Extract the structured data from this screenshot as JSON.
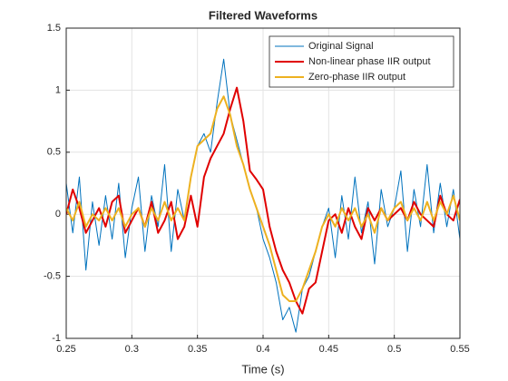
{
  "chart_data": {
    "type": "line",
    "title": "Filtered Waveforms",
    "x_label": "Time (s)",
    "x": [
      0.25,
      0.255,
      0.26,
      0.265,
      0.27,
      0.275,
      0.28,
      0.285,
      0.29,
      0.295,
      0.3,
      0.305,
      0.31,
      0.315,
      0.32,
      0.325,
      0.33,
      0.335,
      0.34,
      0.345,
      0.35,
      0.355,
      0.36,
      0.365,
      0.37,
      0.375,
      0.38,
      0.385,
      0.39,
      0.395,
      0.4,
      0.405,
      0.41,
      0.415,
      0.42,
      0.425,
      0.43,
      0.435,
      0.44,
      0.445,
      0.45,
      0.455,
      0.46,
      0.465,
      0.47,
      0.475,
      0.48,
      0.485,
      0.49,
      0.495,
      0.5,
      0.505,
      0.51,
      0.515,
      0.52,
      0.525,
      0.53,
      0.535,
      0.54,
      0.545,
      0.55
    ],
    "series": [
      {
        "name": "Original Signal",
        "color": "#0072bd",
        "width": 1,
        "values": [
          0.25,
          -0.15,
          0.3,
          -0.45,
          0.1,
          -0.25,
          0.15,
          -0.2,
          0.25,
          -0.35,
          0.05,
          0.3,
          -0.3,
          0.15,
          -0.1,
          0.4,
          -0.3,
          0.2,
          -0.05,
          0.3,
          0.55,
          0.65,
          0.5,
          0.9,
          1.25,
          0.8,
          0.6,
          0.4,
          0.2,
          0.05,
          -0.2,
          -0.35,
          -0.55,
          -0.85,
          -0.75,
          -0.95,
          -0.6,
          -0.5,
          -0.3,
          -0.1,
          0.05,
          -0.35,
          0.15,
          -0.2,
          0.3,
          -0.15,
          0.1,
          -0.4,
          0.2,
          -0.1,
          0.05,
          0.35,
          -0.3,
          0.2,
          -0.1,
          0.4,
          -0.15,
          0.25,
          -0.1,
          0.2,
          -0.2
        ]
      },
      {
        "name": "Non-linear phase IIR output",
        "color": "#e00000",
        "width": 2,
        "values": [
          0,
          0.2,
          0.05,
          -0.15,
          -0.05,
          0.05,
          -0.1,
          0.1,
          0.15,
          -0.15,
          -0.05,
          0.05,
          -0.1,
          0.1,
          -0.15,
          -0.05,
          0.1,
          -0.2,
          -0.1,
          0.15,
          -0.1,
          0.3,
          0.45,
          0.55,
          0.65,
          0.85,
          1.02,
          0.75,
          0.35,
          0.28,
          0.2,
          -0.1,
          -0.3,
          -0.45,
          -0.55,
          -0.7,
          -0.8,
          -0.6,
          -0.55,
          -0.3,
          -0.05,
          0,
          -0.15,
          0.05,
          -0.1,
          -0.2,
          0.05,
          -0.05,
          0.05,
          -0.05,
          0,
          0.05,
          -0.05,
          0.1,
          0,
          -0.05,
          -0.1,
          0.15,
          0,
          -0.05,
          0.12
        ]
      },
      {
        "name": "Zero-phase IIR output",
        "color": "#edb120",
        "width": 2,
        "values": [
          0.05,
          -0.05,
          0.1,
          -0.1,
          0,
          -0.05,
          0.05,
          -0.05,
          0.05,
          -0.1,
          0,
          0.05,
          -0.1,
          0.05,
          -0.05,
          0.1,
          -0.05,
          0.05,
          -0.05,
          0.3,
          0.55,
          0.6,
          0.65,
          0.85,
          0.95,
          0.8,
          0.55,
          0.4,
          0.2,
          0.05,
          -0.1,
          -0.25,
          -0.45,
          -0.65,
          -0.7,
          -0.7,
          -0.6,
          -0.45,
          -0.3,
          -0.1,
          0,
          -0.1,
          0.05,
          -0.05,
          0.05,
          -0.1,
          0,
          -0.15,
          0.05,
          -0.05,
          0.05,
          0.1,
          -0.05,
          0.05,
          -0.05,
          0.1,
          -0.05,
          0.1,
          0,
          0.15,
          -0.05
        ]
      }
    ],
    "xlim": [
      0.25,
      0.55
    ],
    "xticks": [
      0.25,
      0.3,
      0.35,
      0.4,
      0.45,
      0.5,
      0.55
    ],
    "ylim": [
      -1,
      1.5
    ],
    "yticks": [
      -1,
      -0.5,
      0,
      0.5,
      1,
      1.5
    ],
    "grid": true,
    "legend": "top-right"
  }
}
